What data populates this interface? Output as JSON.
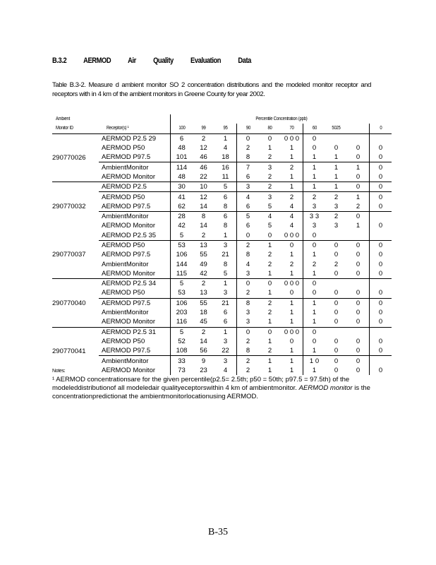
{
  "heading": "B.3.2 AERMOD Air Quality Evaluation Data",
  "caption": "Table B.3-2. Measure d ambient monitor SO 2 concentration distributions and the modeled monitor receptor and receptors with in 4 km of the ambient monitors in Greene County for year 2002.",
  "table": {
    "header_top": {
      "col1": "Ambient",
      "group": "Percentile Concentration (ppb)"
    },
    "header": [
      "Monitor ID",
      "Receptor(s) ¹",
      "100",
      "99",
      "95",
      "90",
      "80",
      "70",
      "60",
      "5025",
      "",
      "0"
    ],
    "groups": [
      {
        "monitor": "290770026",
        "rows": [
          {
            "receptor": "AERMOD P2.5 29",
            "values": [
              "6",
              "2",
              "1",
              "0",
              "0",
              "0 0 0",
              "0",
              "",
              "",
              ""
            ]
          },
          {
            "receptor": "AERMOD P50",
            "values": [
              "48",
              "12",
              "4",
              "2",
              "1",
              "1",
              "0",
              "0",
              "0",
              "0"
            ]
          },
          {
            "receptor": "AERMOD P97.5",
            "values": [
              "101",
              "46",
              "18",
              "8",
              "2",
              "1",
              "1",
              "1",
              "0",
              "0"
            ]
          },
          {
            "receptor": "AmbientMonitor",
            "values": [
              "114",
              "46",
              "16",
              "7",
              "3",
              "2",
              "1",
              "1",
              "1",
              "0"
            ]
          },
          {
            "receptor": "AERMOD Monitor",
            "values": [
              "48",
              "22",
              "11",
              "6",
              "2",
              "1",
              "1",
              "1",
              "0",
              "0"
            ]
          }
        ]
      },
      {
        "monitor": "290770032",
        "rows": [
          {
            "receptor": "AERMOD P2.5",
            "values": [
              "30",
              "10",
              "5",
              "3",
              "2",
              "1",
              "1",
              "1",
              "0",
              "0"
            ]
          },
          {
            "receptor": "AERMOD P50",
            "values": [
              "41",
              "12",
              "6",
              "4",
              "3",
              "2",
              "2",
              "2",
              "1",
              "0"
            ]
          },
          {
            "receptor": "AERMOD P97.5",
            "values": [
              "62",
              "14",
              "8",
              "6",
              "5",
              "4",
              "3",
              "3",
              "2",
              "0"
            ]
          },
          {
            "receptor": "AmbientMonitor",
            "values": [
              "28",
              "8",
              "6",
              "5",
              "4",
              "4",
              "3 3",
              "2",
              "0",
              ""
            ]
          },
          {
            "receptor": "AERMOD Monitor",
            "values": [
              "42",
              "14",
              "8",
              "6",
              "5",
              "4",
              "3",
              "3",
              "1",
              "0"
            ]
          }
        ]
      },
      {
        "monitor": "290770037",
        "rows": [
          {
            "receptor": "AERMOD P2.5 35",
            "values": [
              "5",
              "2",
              "1",
              "0",
              "0",
              "0 0 0",
              "0",
              "",
              "",
              ""
            ]
          },
          {
            "receptor": "AERMOD P50",
            "values": [
              "53",
              "13",
              "3",
              "2",
              "1",
              "0",
              "0",
              "0",
              "0",
              "0"
            ]
          },
          {
            "receptor": "AERMOD P97.5",
            "values": [
              "106",
              "55",
              "21",
              "8",
              "2",
              "1",
              "1",
              "0",
              "0",
              "0"
            ]
          },
          {
            "receptor": "AmbientMonitor",
            "values": [
              "144",
              "49",
              "8",
              "4",
              "2",
              "2",
              "2",
              "2",
              "0",
              "0"
            ]
          },
          {
            "receptor": "AERMOD Monitor",
            "values": [
              "115",
              "42",
              "5",
              "3",
              "1",
              "1",
              "1",
              "0",
              "0",
              "0"
            ]
          }
        ]
      },
      {
        "monitor": "290770040",
        "rows": [
          {
            "receptor": "AERMOD P2.5 34",
            "values": [
              "5",
              "2",
              "1",
              "0",
              "0",
              "0 0 0",
              "0",
              "",
              "",
              ""
            ]
          },
          {
            "receptor": "AERMOD P50",
            "values": [
              "53",
              "13",
              "3",
              "2",
              "1",
              "0",
              "0",
              "0",
              "0",
              "0"
            ]
          },
          {
            "receptor": "AERMOD P97.5",
            "values": [
              "106",
              "55",
              "21",
              "8",
              "2",
              "1",
              "1",
              "0",
              "0",
              "0"
            ]
          },
          {
            "receptor": "AmbientMonitor",
            "values": [
              "203",
              "18",
              "6",
              "3",
              "2",
              "1",
              "1",
              "0",
              "0",
              "0"
            ]
          },
          {
            "receptor": "AERMOD Monitor",
            "values": [
              "116",
              "45",
              "6",
              "3",
              "1",
              "1",
              "1",
              "0",
              "0",
              "0"
            ]
          }
        ]
      },
      {
        "monitor": "290770041",
        "rows": [
          {
            "receptor": "AERMOD P2.5 31",
            "values": [
              "5",
              "2",
              "1",
              "0",
              "0",
              "0 0 0",
              "0",
              "",
              "",
              ""
            ]
          },
          {
            "receptor": "AERMOD P50",
            "values": [
              "52",
              "14",
              "3",
              "2",
              "1",
              "0",
              "0",
              "0",
              "0",
              "0"
            ]
          },
          {
            "receptor": "AERMOD P97.5",
            "values": [
              "108",
              "56",
              "22",
              "8",
              "2",
              "1",
              "1",
              "0",
              "0",
              "0"
            ]
          },
          {
            "receptor": "AmbientMonitor",
            "values": [
              "33",
              "9",
              "3",
              "2",
              "1",
              "1",
              "1 0",
              "0",
              "0",
              ""
            ]
          },
          {
            "receptor": "AERMOD Monitor",
            "values": [
              "73",
              "23",
              "4",
              "2",
              "1",
              "1",
              "1",
              "0",
              "0",
              "0"
            ]
          }
        ]
      }
    ]
  },
  "notes": {
    "label": "Notes:",
    "text": "¹ AERMOD concentrationsare for the given percentile(p2.5= 2.5th; p50 = 50th; p97.5 = 97.5th) of the modeleddistributionof all modeledair qualityeceptorswithin 4 km of ambientmonitor.",
    "italic": "AERMOD monitor",
    "text2": " is the concentrationpredictionat the ambientmonitorlocationusing AERMOD."
  },
  "page_number": "B-35"
}
